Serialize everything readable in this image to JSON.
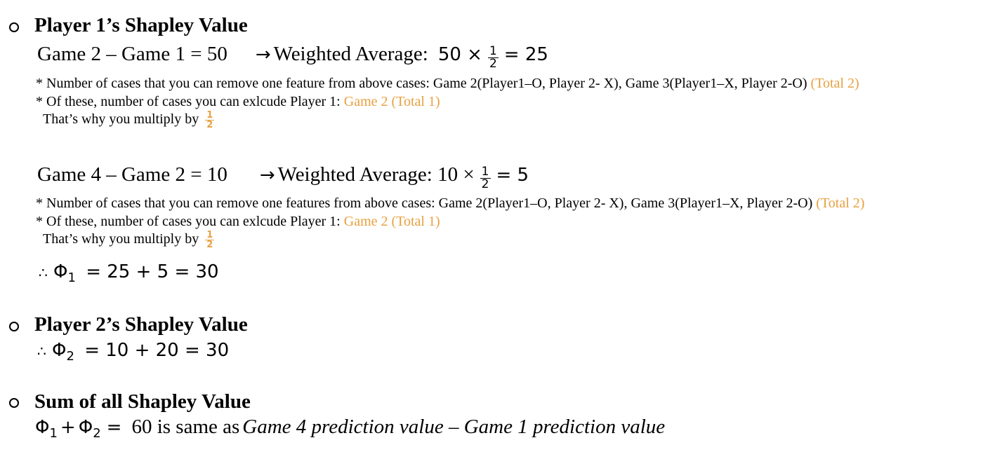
{
  "section1": {
    "bullet": "o",
    "heading": "Player 1’s Shapley Value",
    "line1": {
      "left": "Game 2 – Game 1 = 50",
      "arrow": "→",
      "label": "Weighted Average:",
      "expr_a": "50 ×",
      "frac_num": "1",
      "frac_den": "2",
      "expr_b": "= 25"
    },
    "note1a": {
      "text": "* Number of cases that you can remove one feature from above cases: Game 2(Player1–O, Player 2- X), Game 3(Player1–X, Player 2-O)",
      "highlight": "(Total 2)"
    },
    "note1b": {
      "text": "* Of these, number of cases you can exlcude Player 1:",
      "highlight": "Game 2 (Total 1)"
    },
    "note1c": {
      "text": "That’s why you multiply by",
      "frac_num": "1",
      "frac_den": "2"
    },
    "line2": {
      "left": "Game 4 – Game 2 = 10",
      "arrow": "→",
      "label": "Weighted Average: 10 ×",
      "frac_num": "1",
      "frac_den": "2",
      "expr_b": "= 5"
    },
    "note2a": {
      "text": "* Number of cases that you can remove one features from above cases: Game 2(Player1–O, Player 2- X), Game 3(Player1–X, Player 2-O)",
      "highlight": "(Total 2)"
    },
    "note2b": {
      "text": "* Of these, number of cases you can exlcude Player 1:",
      "highlight": "Game 2 (Total 1)"
    },
    "note2c": {
      "text": "That’s why you multiply by",
      "frac_num": "1",
      "frac_den": "2"
    },
    "result": {
      "therefore": "∴",
      "phi": "Φ",
      "sub": "1",
      "rhs": "= 25 + 5 = 30"
    }
  },
  "section2": {
    "bullet": "o",
    "heading": "Player 2’s Shapley Value",
    "result": {
      "therefore": "∴",
      "phi": "Φ",
      "sub": "2",
      "rhs": "= 10 + 20 = 30"
    }
  },
  "section3": {
    "bullet": "o",
    "heading": "Sum of all Shapley Value",
    "phi1": "Φ",
    "sub1": "1",
    "plus": "+",
    "phi2": "Φ",
    "sub2": "2",
    "eq": "=",
    "value": "60 is same as",
    "italic": "Game 4 prediction value – Game 1 prediction value"
  },
  "colors": {
    "highlight": "#e8a040",
    "text": "#000000"
  }
}
